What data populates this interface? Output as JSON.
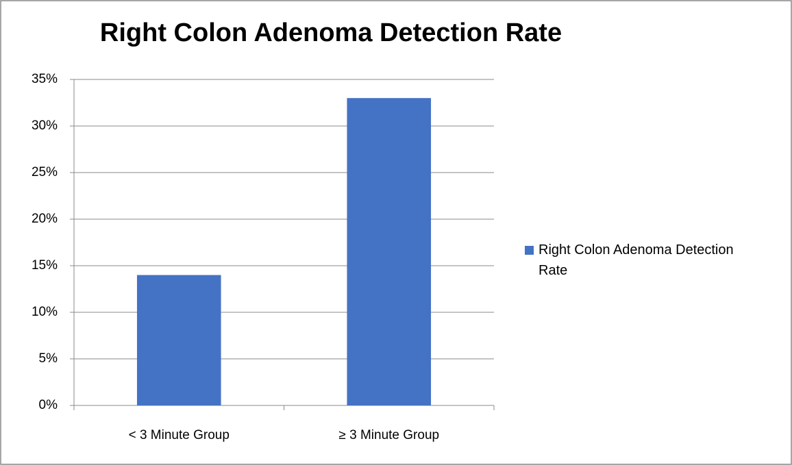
{
  "chart_data": {
    "type": "bar",
    "title": "Right Colon Adenoma Detection Rate",
    "categories": [
      "< 3 Minute Group",
      "≥ 3 Minute Group"
    ],
    "series": [
      {
        "name": "Right Colon Adenoma Detection Rate",
        "color": "#4472c4",
        "values": [
          14,
          33
        ]
      }
    ],
    "ylim": [
      0,
      35
    ],
    "yticks": [
      {
        "value": 0,
        "label": "0%"
      },
      {
        "value": 5,
        "label": "5%"
      },
      {
        "value": 10,
        "label": "10%"
      },
      {
        "value": 15,
        "label": "15%"
      },
      {
        "value": 20,
        "label": "20%"
      },
      {
        "value": 25,
        "label": "25%"
      },
      {
        "value": 30,
        "label": "30%"
      },
      {
        "value": 35,
        "label": "35%"
      }
    ],
    "grid": true,
    "legend": "right"
  }
}
